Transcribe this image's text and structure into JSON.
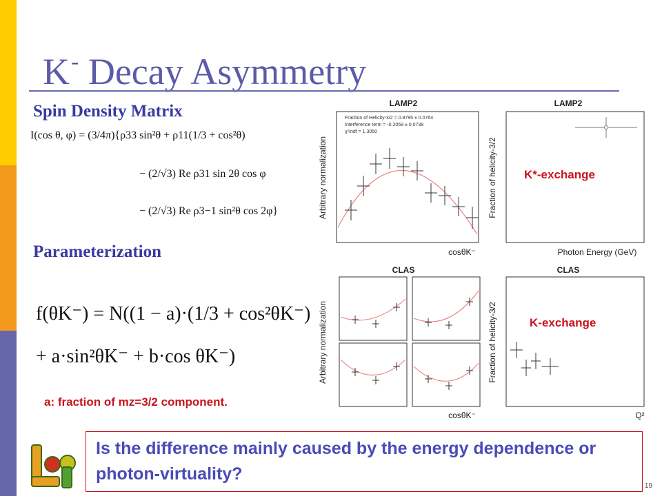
{
  "slide": {
    "title_main": "K",
    "title_sup": "-",
    "title_rest": " Decay Asymmetry",
    "spin_density_heading": "Spin Density Matrix",
    "parameterization_heading": "Parameterization",
    "equation_lines": [
      "I(cos θ, φ) = (3/4π){ρ33 sin²θ + ρ11(1/3 + cos²θ)",
      "− (2/√3) Re ρ31 sin 2θ cos φ",
      "− (2/√3) Re ρ3−1 sin²θ cos 2φ}"
    ],
    "param_line1": "f(θK⁻) = N((1 − a)·(1/3 + cos²θK⁻)",
    "param_line2": "+ a·sin²θK⁻ + b·cos θK⁻)",
    "note": "a: fraction of mz=3/2 component.",
    "question": "Is the difference mainly caused by the energy dependence or photon-virtuality?",
    "page_number": "19"
  },
  "plots": {
    "lamp2_left": {
      "title": "LAMP2",
      "ylabel": "Arbitrary normalization",
      "xlabel": "cosθK⁻",
      "stats": [
        "Fraction of Helicity-3/2 = 0.8795 ± 0.0764",
        "Interference term = -0.2059 ± 0.0738",
        "χ²/ndf = 1.3050"
      ]
    },
    "lamp2_right": {
      "title": "LAMP2",
      "ylabel": "Fraction of helicity-3/2",
      "xlabel": "Photon Energy (GeV)",
      "label": "K*-exchange"
    },
    "clas_left": {
      "title": "CLAS",
      "ylabel": "Arbitrary normalization",
      "xlabel": "cosθK⁻"
    },
    "clas_right": {
      "title": "CLAS",
      "ylabel": "Fraction of helicity-3/2",
      "xlabel": "Q²",
      "label": "K-exchange"
    }
  },
  "colors": {
    "accent": "#5b5ba8",
    "red": "#c9141c",
    "fit": "#e88080"
  }
}
